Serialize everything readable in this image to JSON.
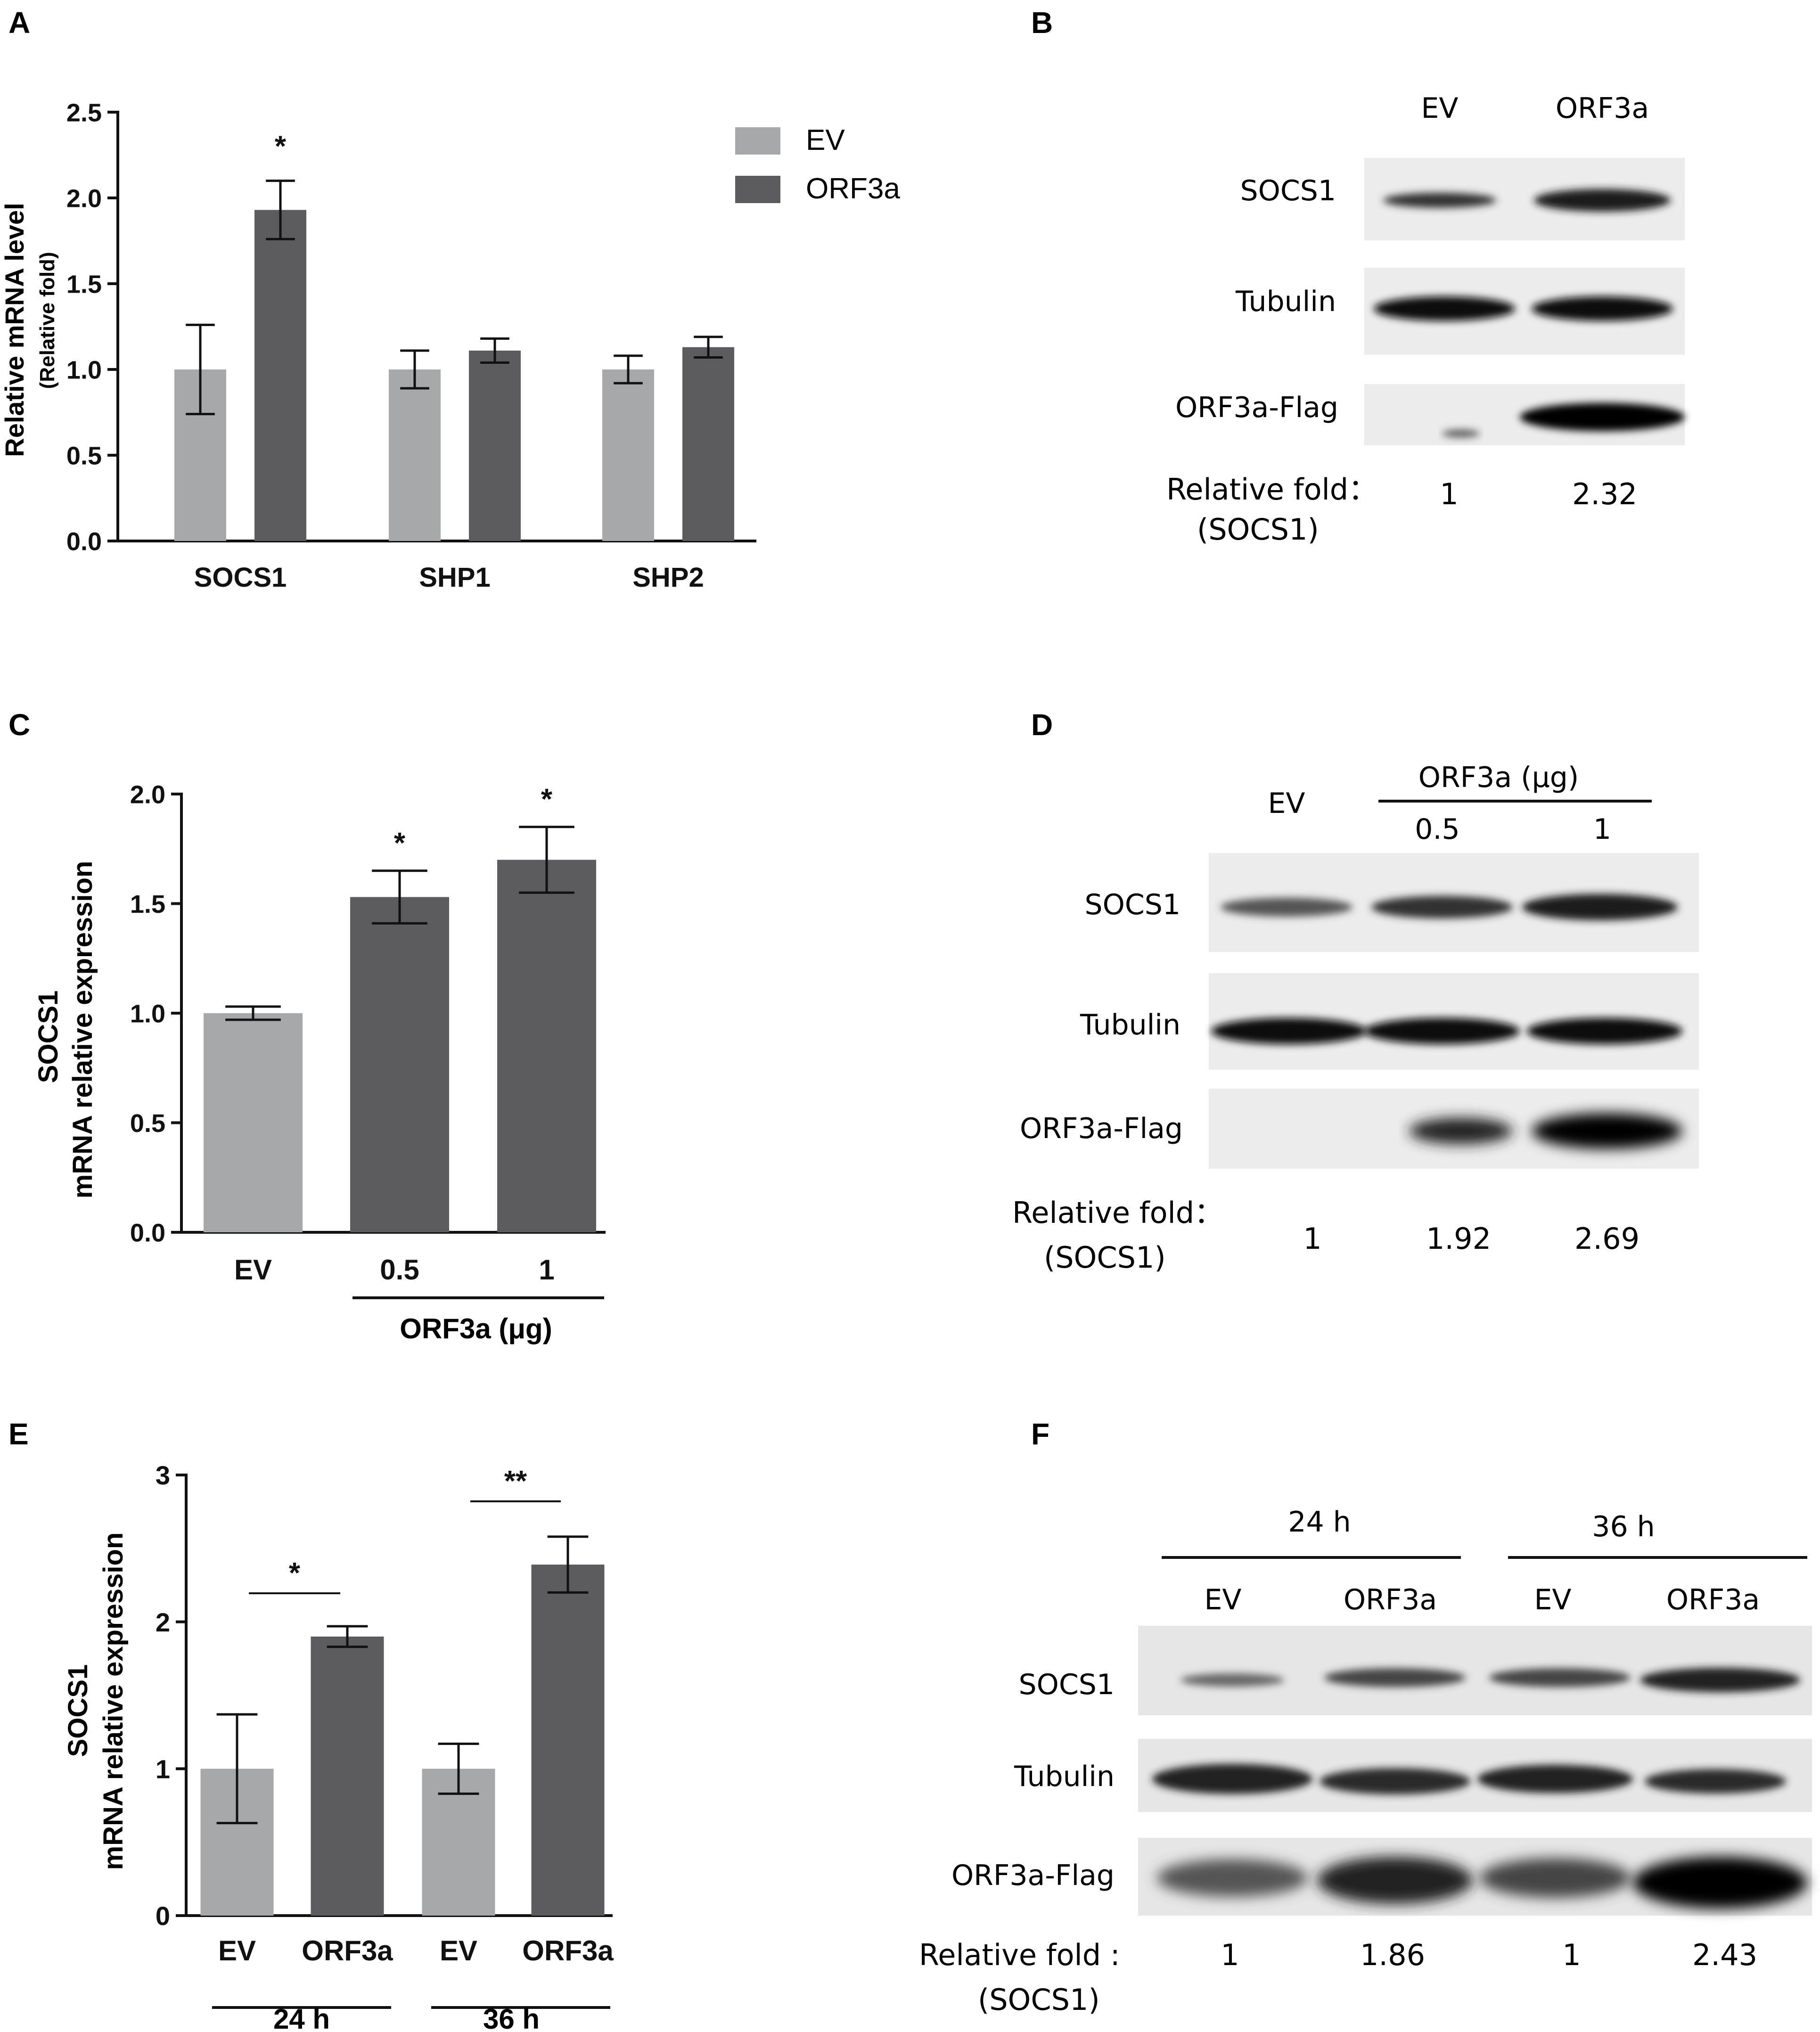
{
  "colors": {
    "ev": "#a7a8aa",
    "orf3a": "#5c5c5e",
    "axis": "#111111"
  },
  "panels": {
    "A": {
      "letter": "A"
    },
    "B": {
      "letter": "B",
      "lanes": [
        "EV",
        "ORF3a"
      ],
      "rows": [
        "SOCS1",
        "Tubulin",
        "ORF3a-Flag"
      ],
      "fold_label_1": "Relative fold：",
      "fold_label_2": "(SOCS1)",
      "folds": [
        "1",
        "2.32"
      ]
    },
    "C": {
      "letter": "C"
    },
    "D": {
      "letter": "D",
      "ev": "EV",
      "group": "ORF3a (μg)",
      "doses": [
        "0.5",
        "1"
      ],
      "rows": [
        "SOCS1",
        "Tubulin",
        "ORF3a-Flag"
      ],
      "fold_label_1": "Relative fold：",
      "fold_label_2": "(SOCS1)",
      "folds": [
        "1",
        "1.92",
        "2.69"
      ]
    },
    "E": {
      "letter": "E"
    },
    "F": {
      "letter": "F",
      "times": [
        "24 h",
        "36 h"
      ],
      "lanes": [
        "EV",
        "ORF3a",
        "EV",
        "ORF3a"
      ],
      "rows": [
        "SOCS1",
        "Tubulin",
        "ORF3a-Flag"
      ],
      "fold_label_1": "Relative fold :",
      "fold_label_2": "(SOCS1)",
      "folds": [
        "1",
        "1.86",
        "1",
        "2.43"
      ]
    }
  },
  "chart_data": [
    {
      "panel": "A",
      "type": "bar",
      "categories": [
        "SOCS1",
        "SHP1",
        "SHP2"
      ],
      "series": [
        {
          "name": "EV",
          "values": [
            1.0,
            1.0,
            1.0
          ],
          "errors": [
            0.26,
            0.11,
            0.08
          ]
        },
        {
          "name": "ORF3a",
          "values": [
            1.93,
            1.11,
            1.13
          ],
          "errors": [
            0.17,
            0.07,
            0.06
          ]
        }
      ],
      "ylabel": "Relative mRNA level",
      "ylabel2": "(Relative fold)",
      "ylim": [
        0,
        2.5
      ],
      "yticks": [
        "0.0",
        "0.5",
        "1.0",
        "1.5",
        "2.0",
        "2.5"
      ],
      "significance": [
        "*",
        "",
        ""
      ],
      "legend": "top-right"
    },
    {
      "panel": "C",
      "type": "bar",
      "categories": [
        "EV",
        "0.5",
        "1"
      ],
      "values": [
        1.0,
        1.53,
        1.7
      ],
      "errors": [
        0.03,
        0.12,
        0.15
      ],
      "series_colors": [
        "ev",
        "orf3a",
        "orf3a"
      ],
      "significance": [
        "",
        "*",
        "*"
      ],
      "ylabel": "SOCS1",
      "ylabel2": "mRNA relative expression",
      "xgroup": "ORF3a (μg)",
      "ylim": [
        0,
        2.0
      ],
      "yticks": [
        "0.0",
        "0.5",
        "1.0",
        "1.5",
        "2.0"
      ]
    },
    {
      "panel": "E",
      "type": "bar",
      "categories": [
        "EV",
        "ORF3a",
        "EV",
        "ORF3a"
      ],
      "groups": [
        "24 h",
        "36 h"
      ],
      "values": [
        1.0,
        1.9,
        1.0,
        2.39
      ],
      "errors": [
        0.37,
        0.07,
        0.17,
        0.19
      ],
      "series_colors": [
        "ev",
        "orf3a",
        "ev",
        "orf3a"
      ],
      "comparisons": [
        "*",
        "**"
      ],
      "ylabel": "SOCS1",
      "ylabel2": "mRNA relative expression",
      "ylim": [
        0,
        3
      ],
      "yticks": [
        "0",
        "1",
        "2",
        "3"
      ]
    }
  ]
}
